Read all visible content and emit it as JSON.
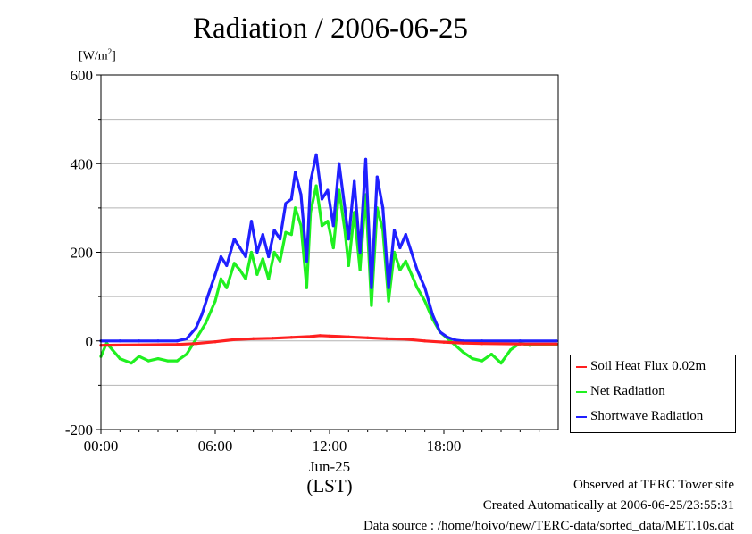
{
  "page": {
    "title": "Radiation / 2006-06-25",
    "unit_text": "[W/m",
    "unit_sup": "2",
    "unit_close": "]",
    "x_date_label": "Jun-25",
    "x_tz_label": "(LST)",
    "footer": {
      "line1": "Observed at TERC Tower site",
      "line2": "Created Automatically at 2006-06-25/23:55:31",
      "line3": "Data source : /home/hoivo/new/TERC-data/sorted_data/MET.10s.dat"
    }
  },
  "chart_data": {
    "type": "line",
    "title": "Radiation / 2006-06-25",
    "xlabel": "(LST)",
    "ylabel": "[W/m2]",
    "xlim": [
      0,
      24
    ],
    "ylim": [
      -200,
      600
    ],
    "x_ticks": [
      0,
      6,
      12,
      18
    ],
    "x_tick_labels": [
      "00:00",
      "06:00",
      "12:00",
      "18:00"
    ],
    "y_ticks": [
      -200,
      0,
      200,
      400,
      600
    ],
    "y_tick_labels": [
      "-200",
      "0",
      "200",
      "400",
      "600"
    ],
    "grid": "horizontal",
    "legend_position": "right, below plot area",
    "series": [
      {
        "name": "Soil Heat Flux 0.02m",
        "color": "#ff2020",
        "x": [
          0,
          2,
          4,
          5,
          6,
          7,
          8,
          9,
          10,
          11,
          11.5,
          12,
          13,
          14,
          15,
          16,
          17,
          18,
          19,
          20,
          22,
          23.9
        ],
        "y": [
          -10,
          -9,
          -8,
          -6,
          -2,
          3,
          5,
          6,
          8,
          10,
          12,
          11,
          9,
          7,
          5,
          4,
          0,
          -3,
          -5,
          -6,
          -7,
          -7
        ]
      },
      {
        "name": "Net Radiation",
        "color": "#20f020",
        "x": [
          0,
          0.3,
          0.6,
          1,
          1.6,
          2,
          2.5,
          3,
          3.5,
          4,
          4.5,
          5,
          5.5,
          6,
          6.3,
          6.6,
          7,
          7.3,
          7.6,
          7.9,
          8.2,
          8.5,
          8.8,
          9.1,
          9.4,
          9.7,
          10,
          10.2,
          10.5,
          10.8,
          11,
          11.3,
          11.6,
          11.9,
          12.2,
          12.5,
          12.8,
          13,
          13.3,
          13.6,
          13.9,
          14.2,
          14.5,
          14.8,
          15.1,
          15.4,
          15.7,
          16,
          16.3,
          16.6,
          17,
          17.4,
          17.8,
          18.2,
          18.6,
          19,
          19.5,
          20,
          20.5,
          21,
          21.5,
          22,
          22.5,
          23,
          23.9
        ],
        "y": [
          -35,
          -5,
          -20,
          -40,
          -50,
          -35,
          -45,
          -40,
          -45,
          -45,
          -30,
          5,
          40,
          90,
          140,
          120,
          175,
          160,
          140,
          200,
          150,
          185,
          140,
          200,
          180,
          245,
          240,
          300,
          260,
          120,
          290,
          350,
          260,
          270,
          210,
          340,
          250,
          170,
          290,
          160,
          330,
          80,
          300,
          250,
          90,
          200,
          160,
          180,
          150,
          120,
          90,
          50,
          20,
          5,
          -10,
          -25,
          -40,
          -45,
          -30,
          -50,
          -20,
          -5,
          -10,
          -8,
          -8
        ]
      },
      {
        "name": "Shortwave Radiation",
        "color": "#2020ff",
        "x": [
          0,
          1,
          2,
          3,
          4,
          4.5,
          5,
          5.3,
          5.6,
          6,
          6.3,
          6.6,
          7,
          7.3,
          7.6,
          7.9,
          8.2,
          8.5,
          8.8,
          9.1,
          9.4,
          9.7,
          10,
          10.2,
          10.5,
          10.8,
          11,
          11.3,
          11.6,
          11.9,
          12.2,
          12.5,
          12.8,
          13,
          13.3,
          13.6,
          13.9,
          14.2,
          14.5,
          14.8,
          15.1,
          15.4,
          15.7,
          16,
          16.3,
          16.6,
          17,
          17.4,
          17.8,
          18.2,
          18.6,
          19,
          20,
          22,
          23.9
        ],
        "y": [
          0,
          0,
          0,
          0,
          0,
          5,
          30,
          60,
          100,
          150,
          190,
          170,
          230,
          210,
          190,
          270,
          200,
          240,
          190,
          250,
          230,
          310,
          320,
          380,
          330,
          180,
          360,
          420,
          320,
          340,
          260,
          400,
          300,
          230,
          360,
          200,
          410,
          120,
          370,
          300,
          120,
          250,
          210,
          240,
          200,
          160,
          120,
          60,
          20,
          8,
          2,
          0,
          0,
          0,
          0
        ]
      }
    ]
  }
}
